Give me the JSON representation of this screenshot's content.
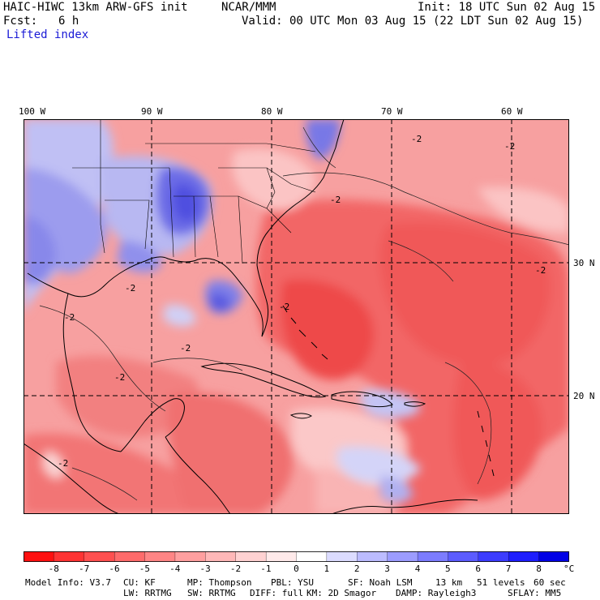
{
  "header": {
    "model_title": "HAIC-HIWC 13km ARW-GFS init",
    "org": "NCAR/MMM",
    "init": "Init: 18 UTC Sun 02 Aug 15",
    "fcst_label": "Fcst:",
    "fcst_value": "6 h",
    "valid": "Valid: 00 UTC Mon 03 Aug 15 (22 LDT Sun 02 Aug 15)",
    "field": "Lifted index"
  },
  "map": {
    "lon_labels": [
      "100 W",
      "90 W",
      "80 W",
      "70 W",
      "60 W"
    ],
    "lat_labels": [
      "30 N",
      "20 N"
    ],
    "contour_label": "-2",
    "colors": {
      "grid": "#000000",
      "coast": "#000000",
      "ocean_base": "#f28c8c"
    }
  },
  "colorbar": {
    "tick_labels": [
      "-8",
      "-7",
      "-6",
      "-5",
      "-4",
      "-3",
      "-2",
      "-1",
      "0",
      "1",
      "2",
      "3",
      "4",
      "5",
      "6",
      "7",
      "8"
    ],
    "unit": "°C",
    "colors": [
      "#ff1010",
      "#ff3333",
      "#ff5050",
      "#ff6b6b",
      "#ff8585",
      "#ff9f9f",
      "#ffb8b8",
      "#ffd2d2",
      "#ffeaea",
      "#ffffff",
      "#dcdcff",
      "#bcbcff",
      "#9c9cff",
      "#7c7cff",
      "#5c5cff",
      "#3c3cff",
      "#1e1eff",
      "#0000e6"
    ]
  },
  "footer": {
    "line1": {
      "model_info": "Model Info: V3.7",
      "cu": "CU: KF",
      "mp": "MP: Thompson",
      "pbl": "PBL: YSU",
      "sf": "SF: Noah LSM",
      "res": "13 km",
      "levels": "51 levels",
      "dt": "60 sec"
    },
    "line2": {
      "lw": "LW: RRTMG",
      "sw": "SW: RRTMG",
      "diff": "DIFF: full",
      "km": "KM: 2D Smagor",
      "damp": "DAMP: Rayleigh3",
      "sflay": "SFLAY: MM5"
    }
  }
}
